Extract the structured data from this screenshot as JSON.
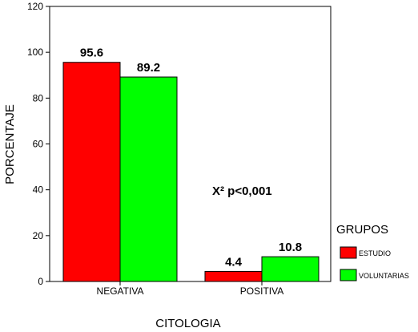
{
  "chart_data": {
    "type": "bar",
    "categories": [
      "NEGATIVA",
      "POSITIVA"
    ],
    "series": [
      {
        "name": "ESTUDIO",
        "color": "#ff0000",
        "values": [
          95.6,
          4.4
        ],
        "labels": [
          "95.6",
          "4.4"
        ]
      },
      {
        "name": "VOLUNTARIAS",
        "color": "#00ff00",
        "values": [
          89.2,
          10.8
        ],
        "labels": [
          "89.2",
          "10.8"
        ]
      }
    ],
    "xlabel": "CITOLOGIA",
    "ylabel": "PORCENTAJE",
    "ylim": [
      0,
      120
    ],
    "yticks": [
      0,
      20,
      40,
      60,
      80,
      100,
      120
    ],
    "ytick_labels": [
      "0",
      "20",
      "40",
      "60",
      "80",
      "100",
      "120"
    ],
    "annotation": "X² p<0,001",
    "legend_title": "GRUPOS",
    "legend_position": "right",
    "grid": false
  }
}
